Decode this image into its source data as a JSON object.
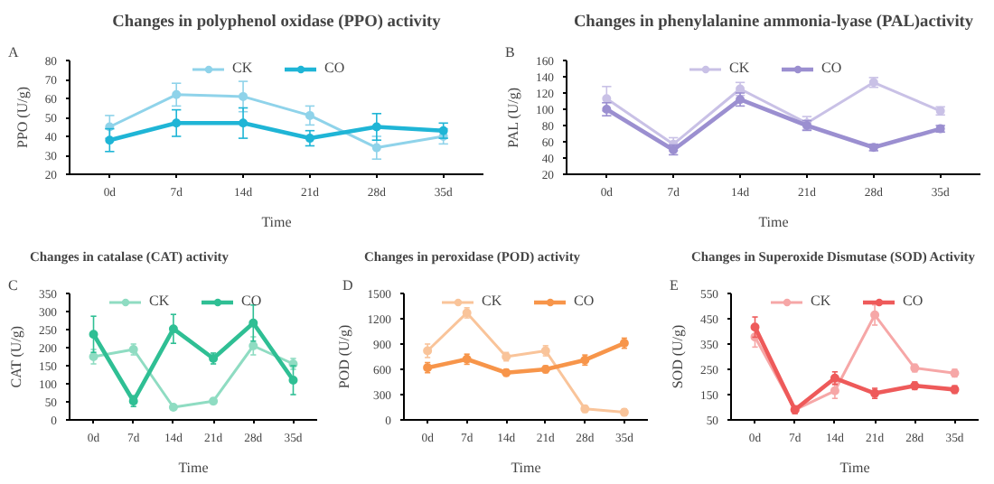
{
  "chart_data": [
    {
      "type": "line",
      "title": "Changes in polyphenol oxidase (PPO) activity",
      "annotations": [
        "A"
      ],
      "xlabel": "Time",
      "ylabel": "PPO (U/g)",
      "categories": [
        "0d",
        "7d",
        "14d",
        "21d",
        "28d",
        "35d"
      ],
      "ylim": [
        20,
        80
      ],
      "yticks": [
        20,
        30,
        40,
        50,
        60,
        70,
        80
      ],
      "legend": "top",
      "grid": false,
      "marker": "circle",
      "series": [
        {
          "name": "CK",
          "color": "#8fd3ea",
          "values": [
            45,
            62,
            61,
            51,
            34,
            40
          ],
          "errors": [
            6,
            6,
            8,
            5,
            6,
            4
          ]
        },
        {
          "name": "CO",
          "color": "#1fb5d6",
          "values": [
            38,
            47,
            47,
            39,
            45,
            43
          ],
          "errors": [
            6,
            7,
            8,
            4,
            7,
            4
          ]
        }
      ]
    },
    {
      "type": "line",
      "title": "Changes in phenylalanine ammonia-lyase (PAL)activity",
      "annotations": [
        "B"
      ],
      "xlabel": "Time",
      "ylabel": "PAL (U/g)",
      "categories": [
        "0d",
        "7d",
        "14d",
        "21d",
        "28d",
        "35d"
      ],
      "ylim": [
        20,
        160
      ],
      "yticks": [
        20,
        40,
        60,
        80,
        100,
        120,
        140,
        160
      ],
      "legend": "top",
      "grid": false,
      "marker": "circle",
      "series": [
        {
          "name": "CK",
          "color": "#c9c1e6",
          "values": [
            113,
            57,
            125,
            83,
            133,
            98
          ],
          "errors": [
            15,
            8,
            8,
            8,
            6,
            5
          ]
        },
        {
          "name": "CO",
          "color": "#9b8fd0",
          "values": [
            100,
            50,
            112,
            80,
            53,
            76
          ],
          "errors": [
            8,
            6,
            8,
            6,
            4,
            4
          ]
        }
      ]
    },
    {
      "type": "line",
      "title": "Changes in catalase (CAT) activity",
      "annotations": [
        "C"
      ],
      "xlabel": "Time",
      "ylabel": "CAT (U/g)",
      "categories": [
        "0d",
        "7d",
        "14d",
        "21d",
        "28d",
        "35d"
      ],
      "ylim": [
        0,
        350
      ],
      "yticks": [
        0,
        50,
        100,
        150,
        200,
        250,
        300,
        350
      ],
      "legend": "top",
      "grid": false,
      "marker": "circle",
      "series": [
        {
          "name": "CK",
          "color": "#8fdcc2",
          "values": [
            175,
            195,
            35,
            52,
            205,
            155
          ],
          "errors": [
            20,
            15,
            8,
            8,
            25,
            15
          ]
        },
        {
          "name": "CO",
          "color": "#2fbf94",
          "values": [
            237,
            52,
            252,
            170,
            268,
            110
          ],
          "errors": [
            50,
            15,
            40,
            15,
            50,
            40
          ]
        }
      ]
    },
    {
      "type": "line",
      "title": "Changes in peroxidase (POD) activity",
      "annotations": [
        "D"
      ],
      "xlabel": "Time",
      "ylabel": "POD (U/g)",
      "categories": [
        "0d",
        "7d",
        "14d",
        "21d",
        "28d",
        "35d"
      ],
      "ylim": [
        0,
        1500
      ],
      "yticks": [
        0,
        300,
        600,
        900,
        1200,
        1500
      ],
      "legend": "top",
      "grid": false,
      "marker": "circle",
      "series": [
        {
          "name": "CK",
          "color": "#f9c49a",
          "values": [
            820,
            1270,
            750,
            820,
            130,
            90
          ],
          "errors": [
            80,
            60,
            50,
            60,
            40,
            40
          ]
        },
        {
          "name": "CO",
          "color": "#f7954a",
          "values": [
            620,
            720,
            560,
            600,
            710,
            910
          ],
          "errors": [
            60,
            60,
            40,
            40,
            60,
            60
          ]
        }
      ]
    },
    {
      "type": "line",
      "title": "Changes in Superoxide Dismutase (SOD) Activity",
      "annotations": [
        "E"
      ],
      "xlabel": "Time",
      "ylabel": "SOD (U/g)",
      "categories": [
        "0d",
        "7d",
        "14d",
        "21d",
        "28d",
        "35d"
      ],
      "ylim": [
        50,
        550
      ],
      "yticks": [
        50,
        150,
        250,
        350,
        450,
        550
      ],
      "legend": "top",
      "grid": false,
      "marker": "circle",
      "series": [
        {
          "name": "CK",
          "color": "#f6a7a7",
          "values": [
            378,
            90,
            165,
            465,
            255,
            235
          ],
          "errors": [
            40,
            15,
            30,
            40,
            15,
            15
          ]
        },
        {
          "name": "CO",
          "color": "#ee5a5a",
          "values": [
            417,
            90,
            215,
            155,
            185,
            170
          ],
          "errors": [
            40,
            15,
            25,
            20,
            15,
            15
          ]
        }
      ]
    }
  ]
}
